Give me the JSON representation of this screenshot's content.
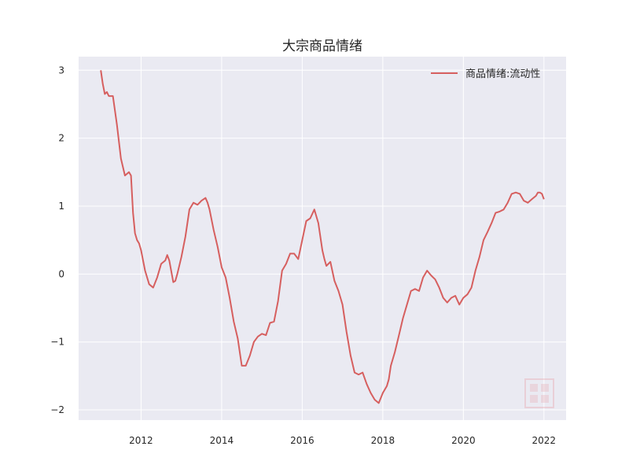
{
  "chart_data": {
    "type": "line",
    "title": "大宗商品情绪",
    "xlabel": "",
    "ylabel": "",
    "xlim": [
      2010.45,
      2022.55
    ],
    "ylim": [
      -2.15,
      3.2
    ],
    "grid": true,
    "legend_position": "top-right",
    "x_ticks": [
      2012,
      2014,
      2016,
      2018,
      2020,
      2022
    ],
    "x_tick_labels": [
      "2012",
      "2014",
      "2016",
      "2018",
      "2020",
      "2022"
    ],
    "y_ticks": [
      -2,
      -1,
      0,
      1,
      2,
      3
    ],
    "y_tick_labels": [
      "−2",
      "−1",
      "0",
      "1",
      "2",
      "3"
    ],
    "series": [
      {
        "name": "商品情绪:流动性",
        "color": "#d65f5f",
        "x": [
          2011.0,
          2011.05,
          2011.1,
          2011.15,
          2011.2,
          2011.3,
          2011.4,
          2011.5,
          2011.6,
          2011.7,
          2011.75,
          2011.8,
          2011.85,
          2011.9,
          2011.95,
          2012.0,
          2012.1,
          2012.2,
          2012.3,
          2012.4,
          2012.5,
          2012.6,
          2012.65,
          2012.7,
          2012.8,
          2012.85,
          2012.9,
          2013.0,
          2013.1,
          2013.2,
          2013.3,
          2013.4,
          2013.5,
          2013.6,
          2013.65,
          2013.7,
          2013.8,
          2013.9,
          2014.0,
          2014.1,
          2014.2,
          2014.3,
          2014.4,
          2014.5,
          2014.6,
          2014.7,
          2014.8,
          2014.9,
          2015.0,
          2015.1,
          2015.2,
          2015.3,
          2015.4,
          2015.5,
          2015.6,
          2015.7,
          2015.8,
          2015.9,
          2016.0,
          2016.1,
          2016.2,
          2016.3,
          2016.4,
          2016.5,
          2016.55,
          2016.6,
          2016.7,
          2016.8,
          2016.9,
          2017.0,
          2017.1,
          2017.2,
          2017.3,
          2017.4,
          2017.5,
          2017.6,
          2017.7,
          2017.8,
          2017.9,
          2018.0,
          2018.1,
          2018.15,
          2018.2,
          2018.3,
          2018.4,
          2018.5,
          2018.6,
          2018.7,
          2018.8,
          2018.9,
          2019.0,
          2019.1,
          2019.2,
          2019.3,
          2019.4,
          2019.5,
          2019.6,
          2019.7,
          2019.8,
          2019.9,
          2020.0,
          2020.1,
          2020.2,
          2020.3,
          2020.4,
          2020.5,
          2020.6,
          2020.7,
          2020.8,
          2020.9,
          2021.0,
          2021.1,
          2021.2,
          2021.3,
          2021.4,
          2021.5,
          2021.6,
          2021.7,
          2021.8,
          2021.85,
          2021.9,
          2021.95,
          2022.0
        ],
        "values": [
          3.0,
          2.8,
          2.65,
          2.68,
          2.62,
          2.62,
          2.2,
          1.7,
          1.45,
          1.5,
          1.45,
          0.9,
          0.6,
          0.5,
          0.45,
          0.35,
          0.05,
          -0.15,
          -0.2,
          -0.05,
          0.15,
          0.2,
          0.28,
          0.2,
          -0.12,
          -0.1,
          0.0,
          0.25,
          0.55,
          0.95,
          1.05,
          1.02,
          1.08,
          1.12,
          1.05,
          0.95,
          0.65,
          0.4,
          0.1,
          -0.05,
          -0.35,
          -0.7,
          -0.95,
          -1.35,
          -1.35,
          -1.2,
          -1.0,
          -0.92,
          -0.88,
          -0.9,
          -0.72,
          -0.7,
          -0.4,
          0.05,
          0.15,
          0.3,
          0.3,
          0.22,
          0.5,
          0.78,
          0.82,
          0.95,
          0.75,
          0.35,
          0.22,
          0.12,
          0.18,
          -0.1,
          -0.25,
          -0.45,
          -0.85,
          -1.2,
          -1.45,
          -1.48,
          -1.45,
          -1.62,
          -1.75,
          -1.85,
          -1.9,
          -1.75,
          -1.65,
          -1.55,
          -1.35,
          -1.15,
          -0.9,
          -0.65,
          -0.45,
          -0.25,
          -0.22,
          -0.25,
          -0.05,
          0.05,
          -0.02,
          -0.08,
          -0.2,
          -0.35,
          -0.42,
          -0.35,
          -0.32,
          -0.45,
          -0.35,
          -0.3,
          -0.2,
          0.05,
          0.25,
          0.5,
          0.62,
          0.75,
          0.9,
          0.92,
          0.95,
          1.05,
          1.18,
          1.2,
          1.18,
          1.08,
          1.05,
          1.1,
          1.15,
          1.2,
          1.2,
          1.18,
          1.1
        ]
      }
    ]
  }
}
